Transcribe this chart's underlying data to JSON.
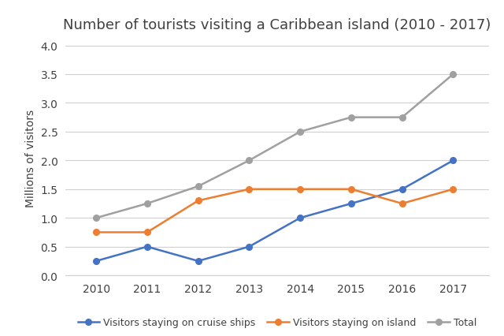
{
  "title": "Number of tourists visiting a Caribbean island (2010 - 2017)",
  "years": [
    2010,
    2011,
    2012,
    2013,
    2014,
    2015,
    2016,
    2017
  ],
  "cruise_ships": [
    0.25,
    0.5,
    0.25,
    0.5,
    1.0,
    1.25,
    1.5,
    2.0
  ],
  "on_island": [
    0.75,
    0.75,
    1.3,
    1.5,
    1.5,
    1.5,
    1.25,
    1.5
  ],
  "total": [
    1.0,
    1.25,
    1.55,
    2.0,
    2.5,
    2.75,
    2.75,
    3.5
  ],
  "cruise_color": "#4472c4",
  "island_color": "#ed7d31",
  "total_color": "#a0a0a0",
  "ylabel": "Millions of visitors",
  "ylim": [
    0,
    4.1
  ],
  "yticks": [
    0,
    0.5,
    1.0,
    1.5,
    2.0,
    2.5,
    3.0,
    3.5,
    4.0
  ],
  "legend_labels": [
    "Visitors staying on cruise ships",
    "Visitors staying on island",
    "Total"
  ],
  "background_color": "#ffffff",
  "title_color": "#404040",
  "tick_color": "#404040",
  "title_fontsize": 13,
  "label_fontsize": 10,
  "tick_fontsize": 10,
  "legend_fontsize": 9,
  "marker": "o",
  "linewidth": 1.8,
  "markersize": 5.5,
  "grid_color": "#d0d0d0",
  "grid_linewidth": 0.8
}
